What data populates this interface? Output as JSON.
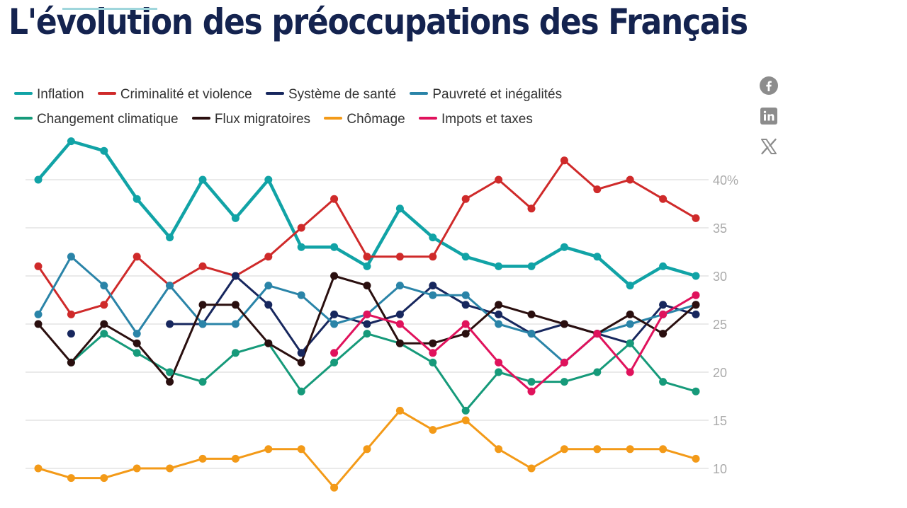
{
  "page": {
    "title": "L'évolution des préoccupations des Français"
  },
  "share": {
    "icons": [
      "facebook-icon",
      "linkedin-icon",
      "x-icon"
    ]
  },
  "chart_data": {
    "type": "line",
    "title": "L'évolution des préoccupations des Français",
    "xlabel": "",
    "ylabel": "",
    "ylim": [
      8,
      45
    ],
    "y_ticks": [
      10,
      15,
      20,
      25,
      30,
      35,
      40
    ],
    "y_tick_labels": [
      "10",
      "15",
      "20",
      "25",
      "30",
      "35",
      "40%"
    ],
    "grid": true,
    "legend_position": "top-left",
    "x": [
      1,
      2,
      3,
      4,
      5,
      6,
      7,
      8,
      9,
      10,
      11,
      12,
      13,
      14,
      15,
      16,
      17,
      18,
      19,
      20,
      21,
      22
    ],
    "series": [
      {
        "name": "Inflation",
        "color": "#11a3a6",
        "bold": true,
        "values": [
          40,
          44,
          43,
          38,
          34,
          40,
          36,
          40,
          33,
          33,
          31,
          37,
          34,
          32,
          31,
          31,
          33,
          32,
          29,
          31,
          30,
          null
        ]
      },
      {
        "name": "Criminalité et violence",
        "color": "#cf2a2a",
        "values": [
          31,
          26,
          27,
          32,
          29,
          31,
          30,
          32,
          35,
          38,
          32,
          32,
          32,
          38,
          40,
          37,
          42,
          39,
          40,
          38,
          36,
          null
        ]
      },
      {
        "name": "Système de santé",
        "color": "#17275e",
        "values": [
          null,
          24,
          null,
          null,
          25,
          25,
          30,
          27,
          22,
          26,
          25,
          26,
          29,
          27,
          26,
          24,
          25,
          24,
          23,
          27,
          26,
          null
        ]
      },
      {
        "name": "Pauvreté et inégalités",
        "color": "#2a84a8",
        "values": [
          26,
          32,
          29,
          24,
          29,
          25,
          25,
          29,
          28,
          25,
          26,
          29,
          28,
          28,
          25,
          24,
          21,
          24,
          25,
          26,
          27,
          null
        ]
      },
      {
        "name": "Changement climatique",
        "color": "#169a7a",
        "values": [
          null,
          21,
          24,
          22,
          20,
          19,
          22,
          23,
          18,
          21,
          24,
          23,
          21,
          16,
          20,
          19,
          19,
          20,
          23,
          19,
          18,
          null
        ]
      },
      {
        "name": "Flux migratoires",
        "color": "#2a0f0f",
        "values": [
          25,
          21,
          25,
          23,
          19,
          27,
          27,
          23,
          21,
          30,
          29,
          23,
          23,
          24,
          27,
          26,
          25,
          24,
          26,
          24,
          27,
          null
        ]
      },
      {
        "name": "Chômage",
        "color": "#f39a18",
        "values": [
          10,
          9,
          9,
          10,
          10,
          11,
          11,
          12,
          12,
          8,
          12,
          16,
          14,
          15,
          12,
          10,
          12,
          12,
          12,
          12,
          11,
          null
        ]
      },
      {
        "name": "Impots et taxes",
        "color": "#e0125c",
        "values": [
          null,
          null,
          null,
          null,
          null,
          null,
          null,
          null,
          null,
          22,
          26,
          25,
          22,
          25,
          21,
          18,
          21,
          24,
          20,
          26,
          28,
          null
        ]
      }
    ]
  }
}
